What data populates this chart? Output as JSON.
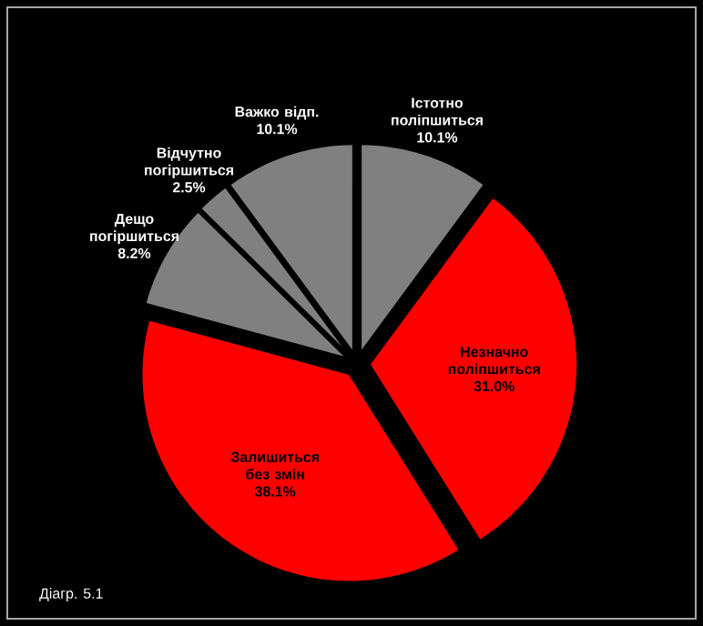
{
  "chart_data": {
    "type": "pie",
    "categories": [
      "Істотно поліпшиться",
      "Незначно поліпшиться",
      "Залишиться без змін",
      "Дещо погіршиться",
      "Відчутно погіршиться",
      "Важко відп."
    ],
    "values": [
      10.1,
      31.0,
      38.1,
      8.2,
      2.5,
      10.1
    ],
    "value_labels": [
      "10.1%",
      "31.0%",
      "38.1%",
      "8.2%",
      "2.5%",
      "10.1%"
    ],
    "colors": [
      "#808080",
      "#ff0000",
      "#ff0000",
      "#808080",
      "#808080",
      "#808080"
    ],
    "annotations": [
      "Діагр. 5.1"
    ]
  }
}
